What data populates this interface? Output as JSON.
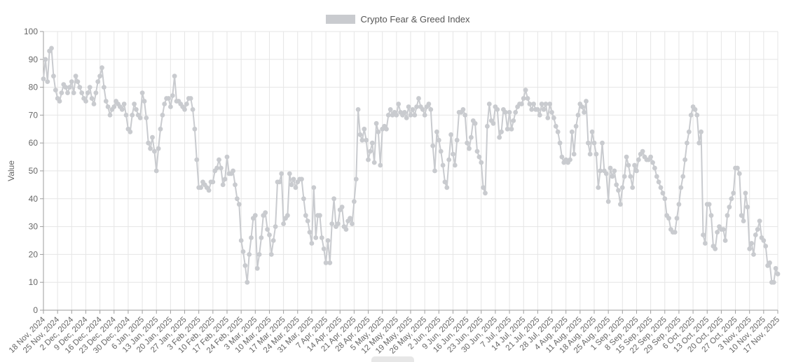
{
  "legend": {
    "label": "Crypto Fear & Greed Index"
  },
  "chart_data": {
    "type": "line",
    "title": "",
    "legend_label": "Crypto Fear & Greed Index",
    "legend_position": "top-center",
    "ylabel": "Value",
    "ylim": [
      0,
      100
    ],
    "y_ticks": [
      0,
      10,
      20,
      30,
      40,
      50,
      60,
      70,
      80,
      90,
      100
    ],
    "x_tick_labels": [
      "18 Nov, 2024",
      "25 Nov, 2024",
      "2 Dec, 2024",
      "9 Dec, 2024",
      "16 Dec, 2024",
      "23 Dec, 2024",
      "30 Dec, 2024",
      "6 Jan, 2025",
      "13 Jan, 2025",
      "20 Jan, 2025",
      "27 Jan, 2025",
      "3 Feb, 2025",
      "10 Feb, 2025",
      "17 Feb, 2025",
      "24 Feb, 2025",
      "3 Mar, 2025",
      "10 Mar, 2025",
      "17 Mar, 2025",
      "24 Mar, 2025",
      "31 Mar, 2025",
      "7 Apr, 2025",
      "14 Apr, 2025",
      "21 Apr, 2025",
      "28 Apr, 2025",
      "5 May, 2025",
      "12 May, 2025",
      "19 May, 2025",
      "26 May, 2025",
      "2 Jun, 2025",
      "9 Jun, 2025",
      "16 Jun, 2025",
      "23 Jun, 2025",
      "30 Jun, 2025",
      "7 Jul, 2025",
      "14 Jul, 2025",
      "21 Jul, 2025",
      "28 Jul, 2025",
      "4 Aug, 2025",
      "11 Aug, 2025",
      "18 Aug, 2025",
      "25 Aug, 2025",
      "1 Sep, 2025",
      "8 Sep, 2025",
      "15 Sep, 2025",
      "22 Sep, 2025",
      "29 Sep, 2025",
      "6 Oct, 2025",
      "13 Oct, 2025",
      "20 Oct, 2025",
      "27 Oct, 2025",
      "3 Nov, 2025",
      "10 Nov, 2025",
      "17 Nov, 2025"
    ],
    "x_unit": "daily",
    "points_per_tick": 7,
    "grid": true,
    "marker": "circle",
    "line_color": "#c9cbcf",
    "grid_color": "#e6e6e6",
    "axis_color": "#9e9e9e",
    "tick_text_color": "#666666",
    "values": [
      83,
      90,
      82,
      93,
      94,
      84,
      79,
      76,
      75,
      78,
      81,
      80,
      78,
      80,
      82,
      78,
      84,
      82,
      80,
      78,
      76,
      75,
      78,
      80,
      76,
      74,
      78,
      82,
      84,
      87,
      80,
      75,
      73,
      70,
      72,
      73,
      75,
      74,
      73,
      72,
      74,
      70,
      65,
      64,
      70,
      74,
      72,
      70,
      69,
      78,
      75,
      69,
      60,
      58,
      62,
      57,
      50,
      58,
      65,
      70,
      74,
      76,
      76,
      73,
      77,
      84,
      75,
      75,
      74,
      73,
      72,
      74,
      76,
      76,
      72,
      65,
      54,
      44,
      44,
      46,
      45,
      44,
      43,
      46,
      46,
      50,
      51,
      54,
      51,
      45,
      47,
      55,
      49,
      49,
      50,
      45,
      40,
      38,
      25,
      21,
      16,
      10,
      20,
      26,
      33,
      34,
      15,
      20,
      26,
      34,
      35,
      29,
      27,
      20,
      25,
      30,
      46,
      46,
      49,
      31,
      33,
      34,
      49,
      45,
      47,
      44,
      46,
      47,
      47,
      40,
      34,
      32,
      28,
      24,
      44,
      26,
      34,
      34,
      26,
      22,
      17,
      25,
      17,
      31,
      40,
      30,
      31,
      36,
      37,
      30,
      29,
      32,
      33,
      31,
      39,
      47,
      72,
      63,
      61,
      65,
      61,
      54,
      57,
      60,
      53,
      67,
      64,
      52,
      65,
      66,
      65,
      70,
      72,
      70,
      71,
      70,
      74,
      71,
      70,
      71,
      69,
      73,
      70,
      72,
      70,
      73,
      76,
      73,
      72,
      70,
      73,
      74,
      72,
      59,
      50,
      64,
      61,
      57,
      52,
      46,
      44,
      54,
      63,
      56,
      52,
      61,
      71,
      71,
      72,
      70,
      60,
      58,
      62,
      68,
      67,
      57,
      55,
      53,
      44,
      42,
      66,
      74,
      68,
      67,
      73,
      72,
      62,
      64,
      72,
      71,
      65,
      71,
      65,
      68,
      71,
      73,
      74,
      74,
      76,
      79,
      76,
      74,
      72,
      74,
      72,
      72,
      70,
      74,
      72,
      74,
      69,
      74,
      71,
      69,
      66,
      64,
      60,
      55,
      53,
      54,
      53,
      54,
      64,
      56,
      66,
      70,
      74,
      73,
      71,
      75,
      60,
      56,
      64,
      60,
      56,
      44,
      50,
      60,
      50,
      49,
      39,
      51,
      48,
      50,
      45,
      43,
      38,
      44,
      48,
      55,
      52,
      48,
      44,
      52,
      50,
      54,
      56,
      57,
      55,
      54,
      54,
      55,
      53,
      51,
      48,
      46,
      44,
      42,
      40,
      34,
      33,
      29,
      28,
      28,
      33,
      38,
      44,
      48,
      54,
      60,
      64,
      70,
      73,
      72,
      70,
      60,
      64,
      27,
      24,
      38,
      38,
      34,
      23,
      22,
      28,
      30,
      29,
      29,
      25,
      34,
      37,
      40,
      42,
      51,
      51,
      49,
      34,
      32,
      42,
      37,
      22,
      24,
      20,
      27,
      29,
      32,
      26,
      25,
      23,
      16,
      17,
      10,
      10,
      15,
      13
    ]
  }
}
